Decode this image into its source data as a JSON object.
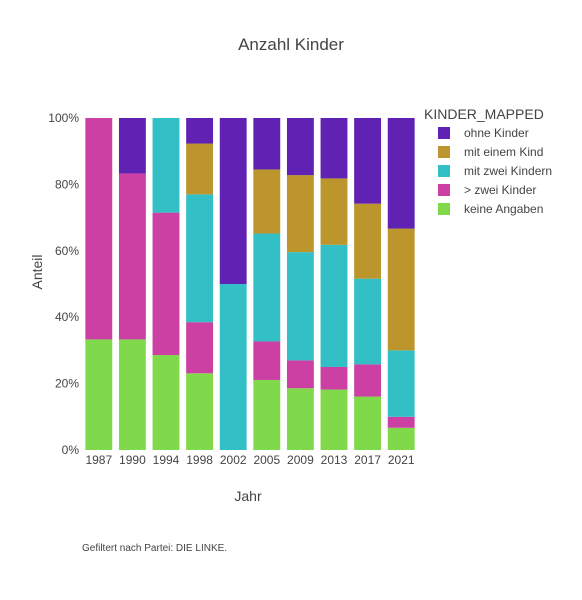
{
  "chart_data": {
    "type": "bar",
    "stacked": true,
    "title": "Anzahl Kinder",
    "xlabel": "Jahr",
    "ylabel": "Anteil",
    "ylim": [
      0,
      1
    ],
    "yticks": [
      "0%",
      "20%",
      "40%",
      "60%",
      "80%",
      "100%"
    ],
    "categories": [
      "1987",
      "1990",
      "1994",
      "1998",
      "2002",
      "2005",
      "2009",
      "2013",
      "2017",
      "2021"
    ],
    "legend_title": "KINDER_MAPPED",
    "legend_position": "top-right",
    "grid": false,
    "series": [
      {
        "name": "keine Angaben",
        "color": "#7FD94A",
        "values": [
          0.333,
          0.333,
          0.286,
          0.231,
          0.0,
          0.211,
          0.186,
          0.182,
          0.161,
          0.067
        ]
      },
      {
        "name": "> zwei Kinder",
        "color": "#CC3FA3",
        "values": [
          0.667,
          0.5,
          0.429,
          0.154,
          0.0,
          0.116,
          0.084,
          0.068,
          0.097,
          0.033
        ]
      },
      {
        "name": "mit zwei Kindern",
        "color": "#33BFC6",
        "values": [
          0.0,
          0.0,
          0.285,
          0.385,
          0.5,
          0.325,
          0.326,
          0.368,
          0.258,
          0.2
        ]
      },
      {
        "name": "mit einem Kind",
        "color": "#BC962D",
        "values": [
          0.0,
          0.0,
          0.0,
          0.153,
          0.0,
          0.193,
          0.232,
          0.2,
          0.226,
          0.367
        ]
      },
      {
        "name": "ohne Kinder",
        "color": "#5F22B3",
        "values": [
          0.0,
          0.167,
          0.0,
          0.077,
          0.5,
          0.155,
          0.172,
          0.182,
          0.258,
          0.333
        ]
      }
    ],
    "legend_order": [
      "ohne Kinder",
      "mit einem Kind",
      "mit zwei Kindern",
      "> zwei Kinder",
      "keine Angaben"
    ]
  },
  "annotation": "Gefiltert nach Partei: DIE LINKE."
}
